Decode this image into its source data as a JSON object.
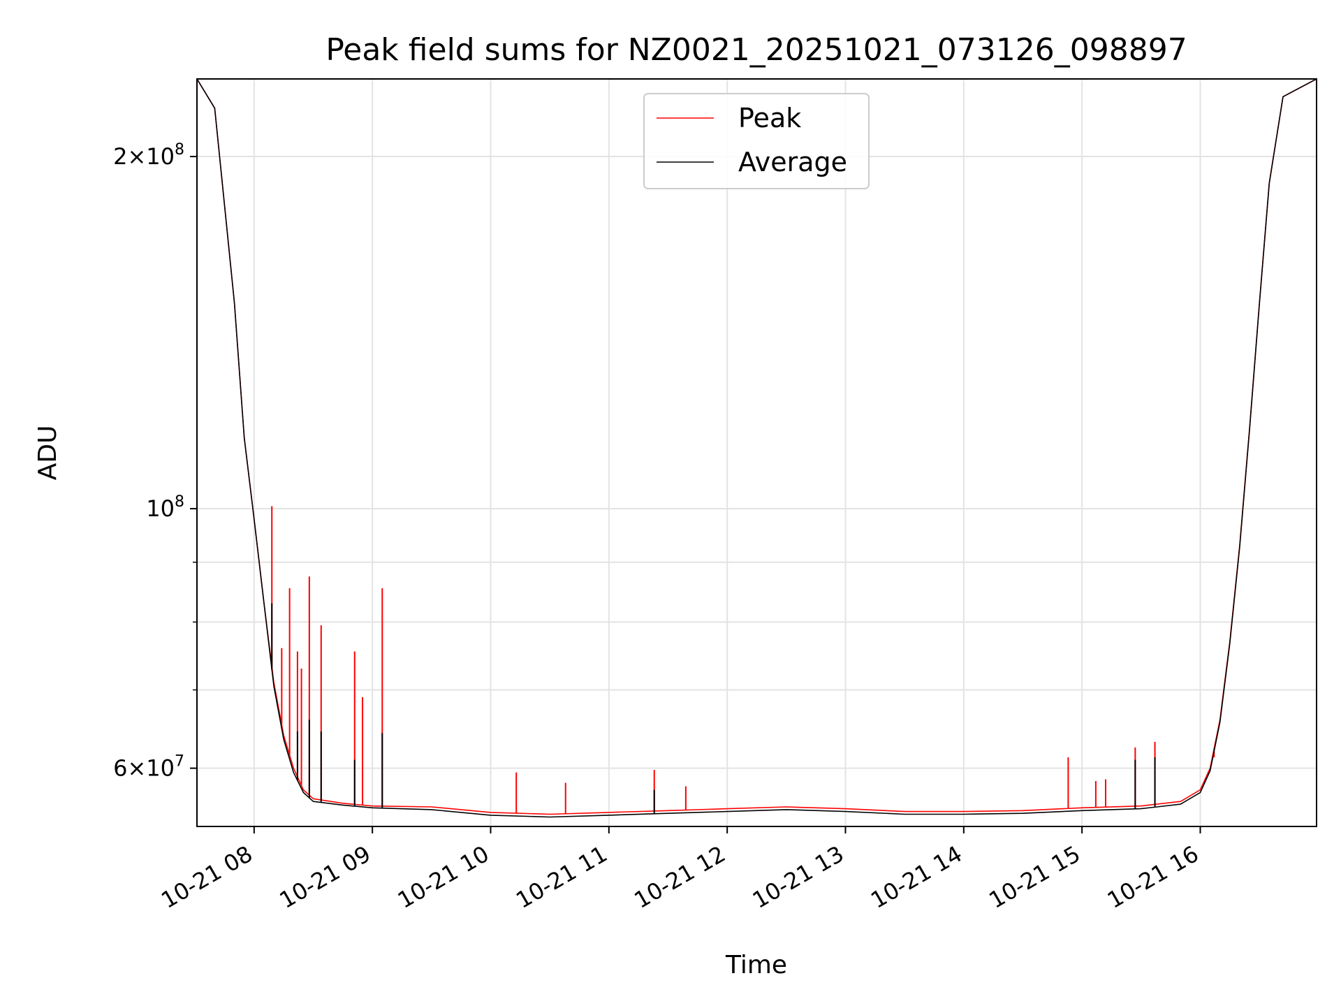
{
  "chart_data": {
    "type": "line",
    "title": "Peak field sums for NZ0021_20251021_073126_098897",
    "xlabel": "Time",
    "ylabel": "ADU",
    "yscale": "log",
    "xlim": [
      "2025-10-21 07:31",
      "2025-10-21 16:59"
    ],
    "ylim": [
      53500000,
      233000000
    ],
    "grid": true,
    "legend_placement": "upper center",
    "x_ticks": [
      {
        "value": "2025-10-21 08:00",
        "label": "10-21 08"
      },
      {
        "value": "2025-10-21 09:00",
        "label": "10-21 09"
      },
      {
        "value": "2025-10-21 10:00",
        "label": "10-21 10"
      },
      {
        "value": "2025-10-21 11:00",
        "label": "10-21 11"
      },
      {
        "value": "2025-10-21 12:00",
        "label": "10-21 12"
      },
      {
        "value": "2025-10-21 13:00",
        "label": "10-21 13"
      },
      {
        "value": "2025-10-21 14:00",
        "label": "10-21 14"
      },
      {
        "value": "2025-10-21 15:00",
        "label": "10-21 15"
      },
      {
        "value": "2025-10-21 16:00",
        "label": "10-21 16"
      }
    ],
    "y_ticks": [
      {
        "value": 60000000,
        "mantissa": "6",
        "exp": "7"
      },
      {
        "value": 100000000,
        "mantissa": "",
        "exp": "8"
      },
      {
        "value": 200000000,
        "mantissa": "2",
        "exp": "8"
      }
    ],
    "y_minor_ticks": [
      70000000,
      80000000,
      90000000
    ],
    "series": [
      {
        "name": "Peak",
        "color": "#ff0000",
        "points": [
          [
            "2025-10-21 07:31",
            233000000
          ],
          [
            "2025-10-21 07:40",
            220000000
          ],
          [
            "2025-10-21 07:50",
            150000000
          ],
          [
            "2025-10-21 07:55",
            115000000
          ],
          [
            "2025-10-21 08:00",
            98000000
          ],
          [
            "2025-10-21 08:05",
            83000000
          ],
          [
            "2025-10-21 08:10",
            71000000
          ],
          [
            "2025-10-21 08:15",
            64000000
          ],
          [
            "2025-10-21 08:20",
            60000000
          ],
          [
            "2025-10-21 08:25",
            57500000
          ],
          [
            "2025-10-21 08:30",
            56500000
          ],
          [
            "2025-10-21 08:45",
            56000000
          ],
          [
            "2025-10-21 09:00",
            55700000
          ],
          [
            "2025-10-21 09:30",
            55600000
          ],
          [
            "2025-10-21 10:00",
            55000000
          ],
          [
            "2025-10-21 10:30",
            54800000
          ],
          [
            "2025-10-21 11:00",
            55000000
          ],
          [
            "2025-10-21 11:30",
            55200000
          ],
          [
            "2025-10-21 12:00",
            55400000
          ],
          [
            "2025-10-21 12:30",
            55600000
          ],
          [
            "2025-10-21 13:00",
            55400000
          ],
          [
            "2025-10-21 13:30",
            55100000
          ],
          [
            "2025-10-21 14:00",
            55100000
          ],
          [
            "2025-10-21 14:30",
            55200000
          ],
          [
            "2025-10-21 15:00",
            55500000
          ],
          [
            "2025-10-21 15:30",
            55700000
          ],
          [
            "2025-10-21 15:50",
            56200000
          ],
          [
            "2025-10-21 16:00",
            57500000
          ],
          [
            "2025-10-21 16:05",
            60000000
          ],
          [
            "2025-10-21 16:10",
            66000000
          ],
          [
            "2025-10-21 16:15",
            77000000
          ],
          [
            "2025-10-21 16:20",
            93000000
          ],
          [
            "2025-10-21 16:25",
            117000000
          ],
          [
            "2025-10-21 16:30",
            150000000
          ],
          [
            "2025-10-21 16:35",
            190000000
          ],
          [
            "2025-10-21 16:42",
            225000000
          ],
          [
            "2025-10-21 16:59",
            233000000
          ]
        ],
        "spikes": [
          [
            "2025-10-21 08:09",
            100500000
          ],
          [
            "2025-10-21 08:14",
            76000000
          ],
          [
            "2025-10-21 08:18",
            85500000
          ],
          [
            "2025-10-21 08:22",
            75500000
          ],
          [
            "2025-10-21 08:24",
            73000000
          ],
          [
            "2025-10-21 08:28",
            87500000
          ],
          [
            "2025-10-21 08:34",
            79500000
          ],
          [
            "2025-10-21 08:51",
            75500000
          ],
          [
            "2025-10-21 08:55",
            69000000
          ],
          [
            "2025-10-21 09:05",
            85500000
          ],
          [
            "2025-10-21 10:13",
            59500000
          ],
          [
            "2025-10-21 10:38",
            58300000
          ],
          [
            "2025-10-21 11:23",
            59800000
          ],
          [
            "2025-10-21 11:39",
            57900000
          ],
          [
            "2025-10-21 14:53",
            61300000
          ],
          [
            "2025-10-21 15:07",
            58500000
          ],
          [
            "2025-10-21 15:12",
            58700000
          ],
          [
            "2025-10-21 15:27",
            62500000
          ],
          [
            "2025-10-21 15:37",
            63200000
          ],
          [
            "2025-10-21 16:07",
            61300000
          ]
        ]
      },
      {
        "name": "Average",
        "color": "#000000",
        "points": [
          [
            "2025-10-21 07:31",
            233000000
          ],
          [
            "2025-10-21 07:40",
            220000000
          ],
          [
            "2025-10-21 07:50",
            150000000
          ],
          [
            "2025-10-21 07:55",
            115000000
          ],
          [
            "2025-10-21 08:00",
            98000000
          ],
          [
            "2025-10-21 08:05",
            83000000
          ],
          [
            "2025-10-21 08:10",
            70500000
          ],
          [
            "2025-10-21 08:15",
            63500000
          ],
          [
            "2025-10-21 08:20",
            59500000
          ],
          [
            "2025-10-21 08:25",
            57200000
          ],
          [
            "2025-10-21 08:30",
            56200000
          ],
          [
            "2025-10-21 08:45",
            55800000
          ],
          [
            "2025-10-21 09:00",
            55500000
          ],
          [
            "2025-10-21 09:30",
            55300000
          ],
          [
            "2025-10-21 10:00",
            54700000
          ],
          [
            "2025-10-21 10:30",
            54500000
          ],
          [
            "2025-10-21 11:00",
            54700000
          ],
          [
            "2025-10-21 11:30",
            54900000
          ],
          [
            "2025-10-21 12:00",
            55100000
          ],
          [
            "2025-10-21 12:30",
            55300000
          ],
          [
            "2025-10-21 13:00",
            55100000
          ],
          [
            "2025-10-21 13:30",
            54800000
          ],
          [
            "2025-10-21 14:00",
            54800000
          ],
          [
            "2025-10-21 14:30",
            54900000
          ],
          [
            "2025-10-21 15:00",
            55200000
          ],
          [
            "2025-10-21 15:30",
            55400000
          ],
          [
            "2025-10-21 15:50",
            55900000
          ],
          [
            "2025-10-21 16:00",
            57200000
          ],
          [
            "2025-10-21 16:05",
            59700000
          ],
          [
            "2025-10-21 16:10",
            65700000
          ],
          [
            "2025-10-21 16:15",
            76700000
          ],
          [
            "2025-10-21 16:20",
            92700000
          ],
          [
            "2025-10-21 16:25",
            116700000
          ],
          [
            "2025-10-21 16:30",
            149700000
          ],
          [
            "2025-10-21 16:35",
            189700000
          ],
          [
            "2025-10-21 16:42",
            225000000
          ],
          [
            "2025-10-21 16:59",
            233000000
          ]
        ],
        "spikes": [
          [
            "2025-10-21 08:09",
            83000000
          ],
          [
            "2025-10-21 08:22",
            64500000
          ],
          [
            "2025-10-21 08:28",
            66000000
          ],
          [
            "2025-10-21 08:34",
            64500000
          ],
          [
            "2025-10-21 08:51",
            61000000
          ],
          [
            "2025-10-21 09:05",
            64300000
          ],
          [
            "2025-10-21 11:23",
            57500000
          ],
          [
            "2025-10-21 15:27",
            61000000
          ],
          [
            "2025-10-21 15:37",
            61300000
          ]
        ]
      }
    ]
  }
}
